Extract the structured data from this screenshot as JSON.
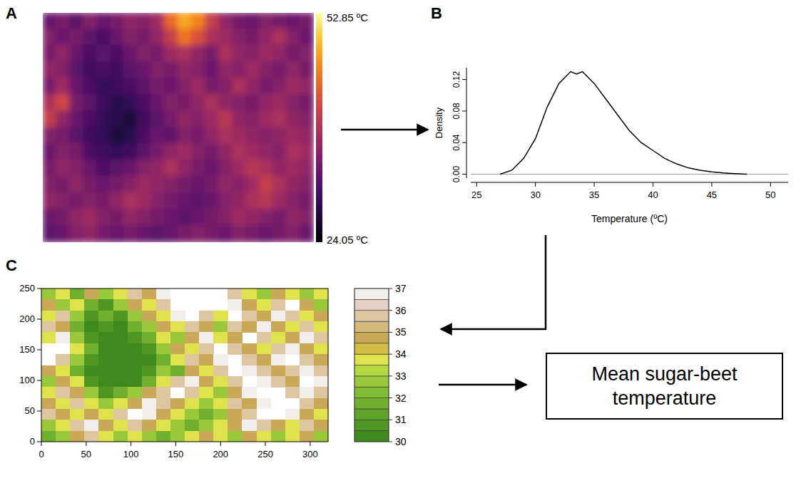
{
  "chart_data": [
    {
      "type": "heatmap",
      "label": "A",
      "color_range": [
        24.05,
        52.85
      ],
      "colorbar_ticks": [
        {
          "value": 52.85,
          "label": "52.85 ºC"
        },
        {
          "value": 24.05,
          "label": "24.05 ºC"
        }
      ],
      "cells": [
        [
          33,
          34,
          32,
          35,
          33,
          34,
          36,
          35,
          37,
          44,
          48,
          46,
          40,
          36,
          34,
          33,
          35,
          34,
          33,
          34
        ],
        [
          35,
          33,
          34,
          32,
          31,
          33,
          35,
          34,
          36,
          40,
          45,
          42,
          38,
          37,
          35,
          34,
          36,
          38,
          35,
          33
        ],
        [
          34,
          36,
          33,
          31,
          32,
          31,
          33,
          35,
          34,
          37,
          38,
          36,
          34,
          38,
          36,
          35,
          37,
          36,
          34,
          35
        ],
        [
          36,
          35,
          32,
          30,
          31,
          30,
          32,
          33,
          35,
          34,
          36,
          35,
          33,
          36,
          35,
          37,
          35,
          34,
          36,
          34
        ],
        [
          34,
          37,
          33,
          31,
          29,
          30,
          31,
          32,
          34,
          33,
          35,
          37,
          34,
          35,
          38,
          36,
          34,
          35,
          37,
          36
        ],
        [
          38,
          41,
          34,
          32,
          30,
          28,
          29,
          31,
          33,
          35,
          34,
          36,
          38,
          36,
          35,
          34,
          36,
          37,
          35,
          34
        ],
        [
          40,
          36,
          33,
          31,
          29,
          28,
          27,
          30,
          32,
          34,
          36,
          35,
          37,
          39,
          36,
          35,
          37,
          38,
          36,
          35
        ],
        [
          35,
          34,
          32,
          30,
          29,
          27,
          28,
          31,
          33,
          32,
          35,
          34,
          36,
          38,
          37,
          36,
          35,
          36,
          37,
          36
        ],
        [
          33,
          35,
          34,
          31,
          30,
          29,
          30,
          32,
          34,
          36,
          37,
          35,
          34,
          36,
          38,
          37,
          36,
          35,
          38,
          37
        ],
        [
          34,
          36,
          35,
          33,
          31,
          32,
          33,
          35,
          36,
          38,
          36,
          34,
          33,
          35,
          37,
          39,
          38,
          36,
          37,
          36
        ],
        [
          35,
          34,
          36,
          34,
          33,
          34,
          35,
          37,
          36,
          35,
          34,
          33,
          34,
          36,
          35,
          37,
          40,
          38,
          36,
          35
        ],
        [
          36,
          35,
          34,
          35,
          34,
          36,
          38,
          37,
          35,
          34,
          33,
          32,
          33,
          35,
          36,
          38,
          39,
          37,
          35,
          34
        ],
        [
          33,
          34,
          36,
          37,
          35,
          34,
          36,
          35,
          34,
          33,
          32,
          33,
          34,
          35,
          37,
          36,
          35,
          34,
          36,
          35
        ],
        [
          32,
          33,
          35,
          36,
          34,
          33,
          34,
          33,
          32,
          33,
          34,
          35,
          34,
          33,
          35,
          34,
          33,
          34,
          35,
          33
        ]
      ]
    },
    {
      "type": "line",
      "label": "B",
      "xlabel": "Temperature (ºC)",
      "ylabel": "Density",
      "x": [
        27,
        28,
        29,
        30,
        31,
        32,
        33,
        33.5,
        34,
        35,
        36,
        37,
        38,
        39,
        40,
        41,
        42,
        43,
        44,
        45,
        46,
        47,
        48
      ],
      "values": [
        0,
        0.005,
        0.02,
        0.045,
        0.085,
        0.115,
        0.13,
        0.127,
        0.13,
        0.115,
        0.095,
        0.075,
        0.055,
        0.04,
        0.03,
        0.02,
        0.013,
        0.008,
        0.005,
        0.003,
        0.0015,
        0.0007,
        0
      ],
      "xlim": [
        24.5,
        51.5
      ],
      "ylim": [
        -0.005,
        0.135
      ],
      "xticks": [
        25,
        30,
        35,
        40,
        45,
        50
      ],
      "yticks": [
        {
          "value": 0,
          "label": "0.00"
        },
        {
          "value": 0.04,
          "label": "0.04"
        },
        {
          "value": 0.08,
          "label": "0.08"
        },
        {
          "value": 0.12,
          "label": "0.12"
        }
      ]
    },
    {
      "type": "raster",
      "label": "C",
      "xlim": [
        0,
        320
      ],
      "ylim": [
        0,
        250
      ],
      "xticks": [
        0,
        50,
        100,
        150,
        200,
        250,
        300
      ],
      "yticks": [
        0,
        50,
        100,
        150,
        200,
        250
      ],
      "colorbar_range": [
        30,
        37
      ],
      "colorbar_ticks": [
        30,
        31,
        32,
        33,
        34,
        35,
        36,
        37
      ],
      "breaks": [
        30,
        30.5,
        31,
        31.5,
        32,
        32.5,
        33,
        33.5,
        34,
        34.5,
        35,
        35.5,
        36,
        36.5,
        37
      ]
    }
  ],
  "flow_box": {
    "label": "Mean sugar-beet temperature"
  }
}
